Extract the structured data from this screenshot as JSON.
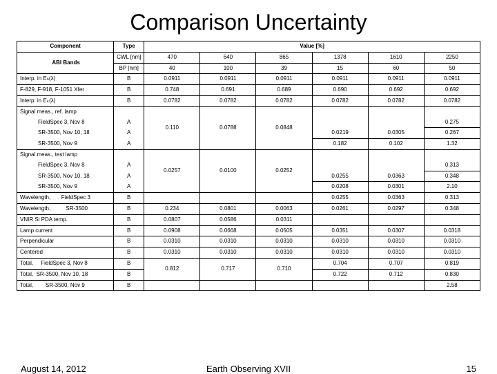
{
  "title": "Comparison Uncertainty",
  "header": {
    "component": "Component",
    "type": "Type",
    "value": "Value [%]",
    "cwl": "CWL [nm]",
    "cwl_vals": [
      "470",
      "640",
      "865",
      "1378",
      "1610",
      "2250"
    ],
    "bp": "BP [nm]",
    "bp_vals": [
      "40",
      "100",
      "39",
      "15",
      "60",
      "50"
    ]
  },
  "rows": {
    "r0": {
      "lbl": "ABI Bands"
    },
    "r1": {
      "lbl": "Interp. in Eₕ(λ)",
      "t": "B",
      "v": [
        "0.0911",
        "0.0911",
        "0.0911",
        "0.0911",
        "0.0911",
        "0.0911"
      ]
    },
    "r2": {
      "lbl": "F-829, F-918, F-1051 Xfer",
      "t": "B",
      "v": [
        "0.748",
        "0.691",
        "0.689",
        "0.690",
        "0.692",
        "0.692"
      ]
    },
    "r3": {
      "lbl": "Interp. in Eₖ(λ)",
      "t": "B",
      "v": [
        "0.0782",
        "0.0782",
        "0.0782",
        "0.0782",
        "0.0782",
        "0.0782"
      ]
    },
    "r4": {
      "lbl": "Signal meas., ref. lamp"
    },
    "r5": {
      "lbl": "FieldSpec 3, Nov 8",
      "t": "A",
      "v5": "0.275"
    },
    "r6": {
      "lbl": "SR-3500, Nov 10, 18",
      "t": "A",
      "v3": "0.0219",
      "v4": "0.0305",
      "v5": "0.267"
    },
    "r7": {
      "lbl": "SR-3500, Nov 9",
      "t": "A",
      "v0": "0.110",
      "v1": "0.0788",
      "v2": "0.0848",
      "v3": "0.182",
      "v4": "0.102",
      "v5": "1.32"
    },
    "r8": {
      "lbl": "Signal meas., test lamp"
    },
    "r9": {
      "lbl": "FieldSpec 3, Nov 8",
      "t": "A",
      "v5": "0.313"
    },
    "r10": {
      "lbl": "SR-3500, Nov 10, 18",
      "t": "A",
      "v3": "0.0255",
      "v4": "0.0363",
      "v5": "0.348"
    },
    "r11": {
      "lbl": "SR-3500, Nov 9",
      "t": "A",
      "v0": "0.0257",
      "v1": "0.0100",
      "v2": "0.0252",
      "v3": "0.0208",
      "v4": "0.0301",
      "v5": "2.10"
    },
    "r12": {
      "lbl": "Wavelength,       FieldSpec 3",
      "t": "B",
      "v3": "0.0255",
      "v4": "0.0363",
      "v5": "0.313"
    },
    "r13": {
      "lbl": "Wavelength,          SR-3500",
      "t": "B",
      "v": [
        "0.234",
        "0.0801",
        "0.0063",
        "0.0261",
        "0.0297",
        "0.348"
      ]
    },
    "r14": {
      "lbl": "VNIR Si PDA temp.",
      "t": "B",
      "v": [
        "0.0807",
        "0.0586",
        "0.0311",
        "",
        "",
        ""
      ]
    },
    "r15": {
      "lbl": "Lamp current",
      "t": "B",
      "v": [
        "0.0908",
        "0.0668",
        "0.0505",
        "0.0351",
        "0.0307",
        "0.0318"
      ]
    },
    "r16": {
      "lbl": "Perpendicular",
      "t": "B",
      "v": [
        "0.0310",
        "0.0310",
        "0.0310",
        "0.0310",
        "0.0310",
        "0.0310"
      ]
    },
    "r17": {
      "lbl": "Centered",
      "t": "B",
      "v": [
        "0.0310",
        "0.0310",
        "0.0310",
        "0.0310",
        "0.0310",
        "0.0310"
      ]
    },
    "r18": {
      "lbl": "Total,     FieldSpec 3, Nov 8",
      "t": "B",
      "v3": "0.704",
      "v4": "0.707",
      "v5": "0.819"
    },
    "r19": {
      "lbl": "Total,  SR-3500, Nov 10, 18",
      "t": "B",
      "v0": "0.812",
      "v1": "0.717",
      "v2": "0.710",
      "v3": "0.722",
      "v4": "0.712",
      "v5": "0.830"
    },
    "r20": {
      "lbl": "Total,        SR-3500, Nov 9",
      "t": "B",
      "v5": "2.58"
    }
  },
  "footer": {
    "date": "August 14, 2012",
    "center": "Earth Observing XVII",
    "page": "15"
  }
}
